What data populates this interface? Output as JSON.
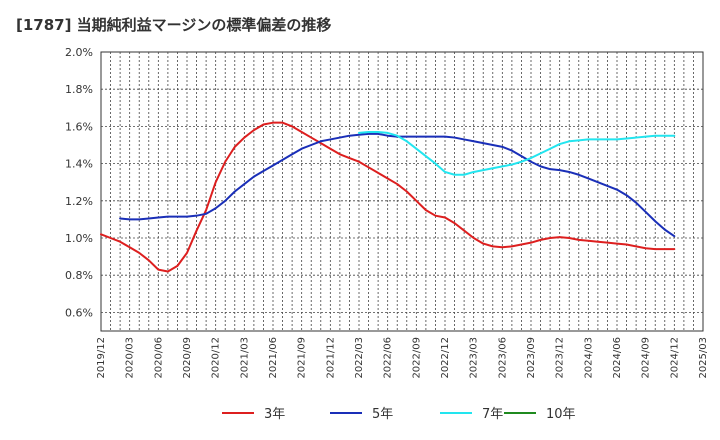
{
  "chart_data": {
    "type": "line",
    "title": "[1787]  当期純利益マージンの標準偏差の推移",
    "xlabel": "",
    "ylabel": "",
    "ylim": [
      0.5,
      2.0
    ],
    "yticks": [
      "2.0%",
      "1.8%",
      "1.6%",
      "1.4%",
      "1.2%",
      "1.0%",
      "0.8%",
      "0.6%"
    ],
    "xticks": [
      "2019/12",
      "2020/03",
      "2020/06",
      "2020/09",
      "2020/12",
      "2021/03",
      "2021/06",
      "2021/09",
      "2021/12",
      "2022/03",
      "2022/06",
      "2022/09",
      "2022/12",
      "2023/03",
      "2023/06",
      "2023/09",
      "2023/12",
      "2024/03",
      "2024/06",
      "2024/09",
      "2024/12",
      "2025/03"
    ],
    "grid": true,
    "legend_position": "bottom",
    "series": [
      {
        "name": "3年",
        "color": "#dd1f1f",
        "points": [
          [
            "2019/12",
            1.02
          ],
          [
            "2020/01",
            1.0
          ],
          [
            "2020/02",
            0.98
          ],
          [
            "2020/03",
            0.95
          ],
          [
            "2020/04",
            0.92
          ],
          [
            "2020/05",
            0.88
          ],
          [
            "2020/06",
            0.83
          ],
          [
            "2020/07",
            0.82
          ],
          [
            "2020/08",
            0.85
          ],
          [
            "2020/09",
            0.92
          ],
          [
            "2020/10",
            1.04
          ],
          [
            "2020/11",
            1.15
          ],
          [
            "2020/12",
            1.3
          ],
          [
            "2021/01",
            1.41
          ],
          [
            "2021/02",
            1.49
          ],
          [
            "2021/03",
            1.54
          ],
          [
            "2021/04",
            1.58
          ],
          [
            "2021/05",
            1.61
          ],
          [
            "2021/06",
            1.62
          ],
          [
            "2021/07",
            1.62
          ],
          [
            "2021/08",
            1.6
          ],
          [
            "2021/09",
            1.57
          ],
          [
            "2021/10",
            1.54
          ],
          [
            "2021/11",
            1.51
          ],
          [
            "2021/12",
            1.48
          ],
          [
            "2022/01",
            1.45
          ],
          [
            "2022/02",
            1.43
          ],
          [
            "2022/03",
            1.41
          ],
          [
            "2022/04",
            1.38
          ],
          [
            "2022/05",
            1.35
          ],
          [
            "2022/06",
            1.32
          ],
          [
            "2022/07",
            1.29
          ],
          [
            "2022/08",
            1.25
          ],
          [
            "2022/09",
            1.2
          ],
          [
            "2022/10",
            1.15
          ],
          [
            "2022/11",
            1.12
          ],
          [
            "2022/12",
            1.11
          ],
          [
            "2023/01",
            1.08
          ],
          [
            "2023/02",
            1.04
          ],
          [
            "2023/03",
            1.0
          ],
          [
            "2023/04",
            0.97
          ],
          [
            "2023/05",
            0.955
          ],
          [
            "2023/06",
            0.95
          ],
          [
            "2023/07",
            0.955
          ],
          [
            "2023/08",
            0.965
          ],
          [
            "2023/09",
            0.975
          ],
          [
            "2023/10",
            0.99
          ],
          [
            "2023/11",
            1.0
          ],
          [
            "2023/12",
            1.005
          ],
          [
            "2024/01",
            1.0
          ],
          [
            "2024/02",
            0.99
          ],
          [
            "2024/03",
            0.985
          ],
          [
            "2024/04",
            0.98
          ],
          [
            "2024/05",
            0.975
          ],
          [
            "2024/06",
            0.97
          ],
          [
            "2024/07",
            0.965
          ],
          [
            "2024/08",
            0.955
          ],
          [
            "2024/09",
            0.945
          ],
          [
            "2024/10",
            0.94
          ],
          [
            "2024/11",
            0.94
          ],
          [
            "2024/12",
            0.94
          ]
        ]
      },
      {
        "name": "5年",
        "color": "#1a2fb8",
        "points": [
          [
            "2020/02",
            1.105
          ],
          [
            "2020/03",
            1.1
          ],
          [
            "2020/04",
            1.1
          ],
          [
            "2020/05",
            1.105
          ],
          [
            "2020/06",
            1.11
          ],
          [
            "2020/07",
            1.115
          ],
          [
            "2020/08",
            1.115
          ],
          [
            "2020/09",
            1.115
          ],
          [
            "2020/10",
            1.12
          ],
          [
            "2020/11",
            1.13
          ],
          [
            "2020/12",
            1.16
          ],
          [
            "2021/01",
            1.2
          ],
          [
            "2021/02",
            1.25
          ],
          [
            "2021/03",
            1.29
          ],
          [
            "2021/04",
            1.33
          ],
          [
            "2021/05",
            1.36
          ],
          [
            "2021/06",
            1.39
          ],
          [
            "2021/07",
            1.42
          ],
          [
            "2021/08",
            1.45
          ],
          [
            "2021/09",
            1.48
          ],
          [
            "2021/10",
            1.5
          ],
          [
            "2021/11",
            1.52
          ],
          [
            "2021/12",
            1.53
          ],
          [
            "2022/01",
            1.54
          ],
          [
            "2022/02",
            1.55
          ],
          [
            "2022/03",
            1.555
          ],
          [
            "2022/04",
            1.56
          ],
          [
            "2022/05",
            1.56
          ],
          [
            "2022/06",
            1.55
          ],
          [
            "2022/07",
            1.545
          ],
          [
            "2022/08",
            1.545
          ],
          [
            "2022/09",
            1.545
          ],
          [
            "2022/10",
            1.545
          ],
          [
            "2022/11",
            1.545
          ],
          [
            "2022/12",
            1.545
          ],
          [
            "2023/01",
            1.54
          ],
          [
            "2023/02",
            1.53
          ],
          [
            "2023/03",
            1.52
          ],
          [
            "2023/04",
            1.51
          ],
          [
            "2023/05",
            1.5
          ],
          [
            "2023/06",
            1.49
          ],
          [
            "2023/07",
            1.47
          ],
          [
            "2023/08",
            1.44
          ],
          [
            "2023/09",
            1.41
          ],
          [
            "2023/10",
            1.385
          ],
          [
            "2023/11",
            1.37
          ],
          [
            "2023/12",
            1.365
          ],
          [
            "2024/01",
            1.355
          ],
          [
            "2024/02",
            1.34
          ],
          [
            "2024/03",
            1.32
          ],
          [
            "2024/04",
            1.3
          ],
          [
            "2024/05",
            1.28
          ],
          [
            "2024/06",
            1.26
          ],
          [
            "2024/07",
            1.23
          ],
          [
            "2024/08",
            1.19
          ],
          [
            "2024/09",
            1.14
          ],
          [
            "2024/10",
            1.09
          ],
          [
            "2024/11",
            1.045
          ],
          [
            "2024/12",
            1.01
          ]
        ]
      },
      {
        "name": "7年",
        "color": "#22e5ef",
        "points": [
          [
            "2022/03",
            1.565
          ],
          [
            "2022/04",
            1.57
          ],
          [
            "2022/05",
            1.57
          ],
          [
            "2022/06",
            1.565
          ],
          [
            "2022/07",
            1.55
          ],
          [
            "2022/08",
            1.52
          ],
          [
            "2022/09",
            1.48
          ],
          [
            "2022/10",
            1.44
          ],
          [
            "2022/11",
            1.4
          ],
          [
            "2022/12",
            1.355
          ],
          [
            "2023/01",
            1.34
          ],
          [
            "2023/02",
            1.34
          ],
          [
            "2023/03",
            1.355
          ],
          [
            "2023/04",
            1.365
          ],
          [
            "2023/05",
            1.375
          ],
          [
            "2023/06",
            1.385
          ],
          [
            "2023/07",
            1.395
          ],
          [
            "2023/08",
            1.41
          ],
          [
            "2023/09",
            1.43
          ],
          [
            "2023/10",
            1.455
          ],
          [
            "2023/11",
            1.48
          ],
          [
            "2023/12",
            1.505
          ],
          [
            "2024/01",
            1.52
          ],
          [
            "2024/02",
            1.525
          ],
          [
            "2024/03",
            1.53
          ],
          [
            "2024/04",
            1.53
          ],
          [
            "2024/05",
            1.53
          ],
          [
            "2024/06",
            1.53
          ],
          [
            "2024/07",
            1.535
          ],
          [
            "2024/08",
            1.54
          ],
          [
            "2024/09",
            1.545
          ],
          [
            "2024/10",
            1.55
          ],
          [
            "2024/11",
            1.55
          ],
          [
            "2024/12",
            1.55
          ]
        ]
      },
      {
        "name": "10年",
        "color": "#1f8a1f",
        "points": []
      }
    ]
  }
}
